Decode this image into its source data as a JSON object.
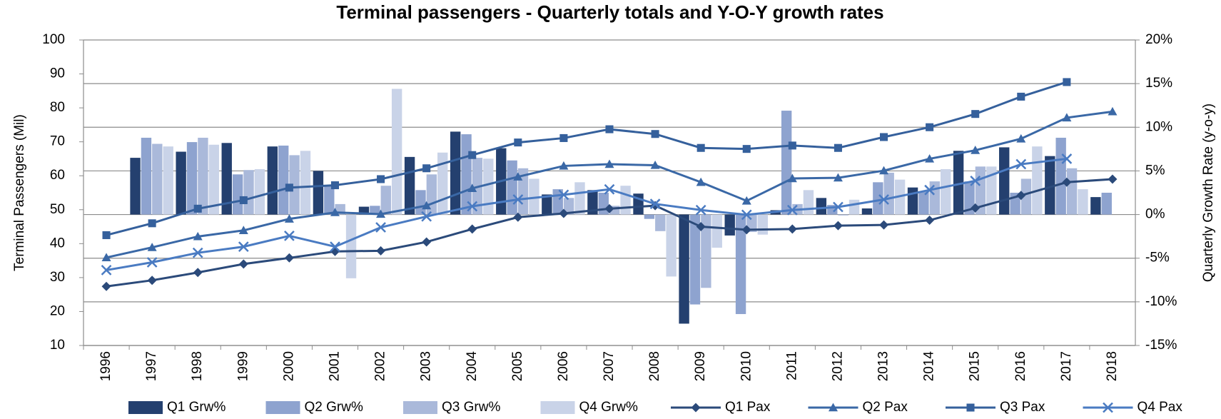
{
  "chart_data": {
    "type": "combo",
    "title": "Terminal passengers - Quarterly totals and Y-O-Y growth rates",
    "y_label": "Terminal Passengers (Mil)",
    "y2_label": "Quarterly Growth Rate (y-o-y)",
    "categories": [
      "1996",
      "1997",
      "1998",
      "1999",
      "2000",
      "2001",
      "2002",
      "2003",
      "2004",
      "2005",
      "2006",
      "2007",
      "2008",
      "2009",
      "2010",
      "2011",
      "2012",
      "2013",
      "2014",
      "2015",
      "2016",
      "2017",
      "2018"
    ],
    "ylim": [
      10,
      100
    ],
    "yticks": [
      10,
      20,
      30,
      40,
      50,
      60,
      70,
      80,
      90,
      100
    ],
    "y2lim": [
      -15,
      20
    ],
    "y2ticks": [
      {
        "value": -15,
        "label": "-15%"
      },
      {
        "value": -10,
        "label": "-10%"
      },
      {
        "value": -5,
        "label": "-5%"
      },
      {
        "value": 0,
        "label": "0%"
      },
      {
        "value": 5,
        "label": "5%"
      },
      {
        "value": 10,
        "label": "10%"
      },
      {
        "value": 15,
        "label": "15%"
      },
      {
        "value": 20,
        "label": "20%"
      }
    ],
    "grid": "y2",
    "legend": "bottom",
    "series": [
      {
        "name": "Q1 Grw%",
        "type": "bar",
        "axis": "y2",
        "color": "#24406f",
        "values": [
          null,
          6.5,
          7.2,
          8.2,
          7.8,
          5.0,
          0.9,
          6.6,
          9.5,
          7.6,
          2.3,
          2.8,
          2.4,
          -12.5,
          -2.4,
          0.5,
          1.9,
          0.7,
          3.1,
          7.3,
          7.7,
          6.7,
          2.0
        ]
      },
      {
        "name": "Q2 Grw%",
        "type": "bar",
        "axis": "y2",
        "color": "#8ea3cf",
        "values": [
          null,
          8.8,
          8.3,
          4.6,
          7.9,
          3.4,
          1.0,
          2.8,
          9.2,
          6.2,
          2.9,
          2.5,
          -0.5,
          -10.3,
          -11.4,
          11.9,
          1.1,
          3.7,
          2.6,
          3.8,
          2.5,
          8.8,
          2.5
        ]
      },
      {
        "name": "Q3 Grw%",
        "type": "bar",
        "axis": "y2",
        "color": "#aab9da",
        "values": [
          null,
          8.1,
          8.8,
          5.1,
          6.8,
          1.2,
          3.3,
          4.6,
          6.5,
          5.3,
          1.9,
          1.0,
          -1.9,
          -8.4,
          -2.0,
          1.2,
          -0.1,
          4.8,
          3.8,
          5.5,
          4.1,
          5.3,
          null
        ]
      },
      {
        "name": "Q4 Grw%",
        "type": "bar",
        "axis": "y2",
        "color": "#c9d3e8",
        "values": [
          null,
          7.8,
          8.0,
          5.2,
          7.3,
          -7.3,
          14.4,
          7.1,
          6.4,
          4.1,
          3.7,
          3.3,
          -7.1,
          -3.8,
          -2.3,
          2.8,
          1.7,
          4.0,
          5.2,
          5.5,
          7.8,
          2.9,
          null
        ]
      },
      {
        "name": "Q1 Pax",
        "type": "line",
        "marker": "diamond",
        "color": "#2b4a7a",
        "values": [
          27.4,
          29.2,
          31.5,
          34.0,
          35.8,
          37.7,
          37.9,
          40.5,
          44.3,
          47.8,
          48.9,
          50.3,
          51.2,
          45.0,
          44.1,
          44.3,
          45.3,
          45.5,
          46.9,
          50.5,
          54.2,
          58.1,
          59.0
        ]
      },
      {
        "name": "Q2 Pax",
        "type": "line",
        "marker": "triangle",
        "color": "#3a68a6",
        "values": [
          35.9,
          38.9,
          42.1,
          43.9,
          47.3,
          49.2,
          48.7,
          51.2,
          56.3,
          59.7,
          62.9,
          63.4,
          63.1,
          58.1,
          52.6,
          59.2,
          59.4,
          61.5,
          65.0,
          67.5,
          70.9,
          77.1,
          78.9
        ]
      },
      {
        "name": "Q3 Pax",
        "type": "line",
        "marker": "square",
        "color": "#35609c",
        "values": [
          42.5,
          46.0,
          50.3,
          52.8,
          56.5,
          57.2,
          59.0,
          62.2,
          66.1,
          69.8,
          71.1,
          73.7,
          72.3,
          68.2,
          67.9,
          68.9,
          68.2,
          71.4,
          74.3,
          78.2,
          83.3,
          87.6,
          null
        ]
      },
      {
        "name": "Q4 Pax",
        "type": "line",
        "marker": "x",
        "color": "#4a7bc2",
        "values": [
          32.2,
          34.5,
          37.3,
          39.1,
          42.3,
          39.1,
          44.8,
          48.0,
          51.0,
          53.0,
          54.4,
          56.0,
          51.7,
          49.9,
          48.5,
          49.9,
          50.8,
          53.0,
          55.8,
          58.5,
          63.4,
          65.0,
          null
        ]
      }
    ]
  }
}
